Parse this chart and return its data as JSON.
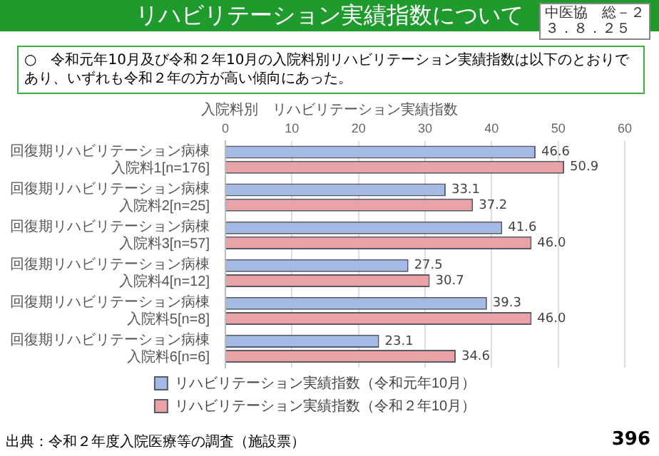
{
  "chart_data": {
    "type": "bar",
    "orientation": "horizontal",
    "title": "リハビリテーション実績指数について",
    "subtitle": "入院料別　リハビリテーション実績指数",
    "annotations": [
      "中医協　総－２",
      "３．８．２５",
      "○　令和元年10月及び令和２年10月の入院料別リハビリテーション実績指数は以下のとおりであり、いずれも令和２年の方が高い傾向にあった。",
      "出典：令和２年度入院医療等の調査（施設票）",
      "396"
    ],
    "categories": [
      "回復期リハビリテーション病棟入院料1[n=176]",
      "回復期リハビリテーション病棟入院料2[n=25]",
      "回復期リハビリテーション病棟入院料3[n=57]",
      "回復期リハビリテーション病棟入院料4[n=12]",
      "回復期リハビリテーション病棟入院料5[n=8]",
      "回復期リハビリテーション病棟入院料6[n=6]"
    ],
    "series": [
      {
        "name": "リハビリテーション実績指数（令和元年10月）",
        "color": "#a4b9e6",
        "values": [
          46.6,
          33.1,
          41.6,
          27.5,
          39.3,
          23.1
        ],
        "value_labels": [
          "46.6",
          "33.1",
          "41.6",
          "27.5",
          "39.3",
          "23.1"
        ]
      },
      {
        "name": "リハビリテーション実績指数（令和２年10月）",
        "color": "#eaa2a6",
        "values": [
          50.9,
          37.2,
          46.0,
          30.7,
          46.0,
          34.6
        ],
        "value_labels": [
          "50.9",
          "37.2",
          "46.0",
          "30.7",
          "46.0",
          "34.6"
        ]
      }
    ],
    "xlim": [
      0,
      60
    ],
    "xticks": [
      0,
      10,
      20,
      30,
      40,
      50,
      60
    ],
    "grid": "x",
    "legend": "bottom"
  }
}
